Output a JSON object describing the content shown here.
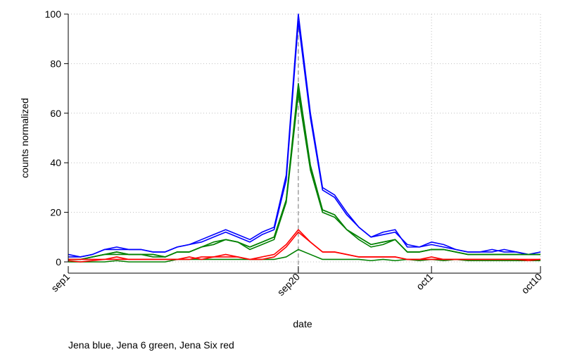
{
  "chart_data": {
    "type": "line",
    "title": "",
    "xlabel": "date",
    "ylabel": "counts normalized",
    "note": "Jena blue, Jena 6 green, Jena Six red",
    "grid": true,
    "xlim": [
      0,
      39
    ],
    "ylim": [
      0,
      100
    ],
    "x_ticks": [
      {
        "value": 0,
        "label": "sep1"
      },
      {
        "value": 19,
        "label": "sep20"
      },
      {
        "value": 30,
        "label": "oct1"
      },
      {
        "value": 39,
        "label": "oct10"
      }
    ],
    "y_ticks": [
      0,
      20,
      40,
      60,
      80,
      100
    ],
    "vline_x": 19,
    "colors": {
      "blue": "#0000ff",
      "green": "#008000",
      "red": "#ff0000",
      "grid": "#bfbfbf",
      "vline": "#888888"
    },
    "series": [
      {
        "color": "#0000ff",
        "values": [
          3,
          2,
          3,
          5,
          6,
          5,
          5,
          4,
          4,
          6,
          7,
          9,
          11,
          13,
          11,
          9,
          12,
          14,
          35,
          100,
          60,
          30,
          27,
          20,
          14,
          10,
          11,
          12,
          7,
          6,
          8,
          7,
          5,
          4,
          4,
          4,
          5,
          4,
          3,
          4
        ]
      },
      {
        "color": "#0000ff",
        "values": [
          2,
          2,
          3,
          5,
          5,
          5,
          5,
          4,
          4,
          6,
          7,
          8,
          10,
          12,
          10,
          8,
          11,
          13,
          33,
          97,
          58,
          29,
          26,
          19,
          14,
          10,
          12,
          13,
          6,
          6,
          7,
          6,
          5,
          4,
          4,
          5,
          4,
          4,
          3,
          3
        ]
      },
      {
        "color": "#008000",
        "values": [
          1,
          1,
          2,
          3,
          4,
          3,
          3,
          3,
          2,
          4,
          4,
          6,
          7,
          9,
          8,
          6,
          8,
          10,
          25,
          72,
          39,
          21,
          19,
          13,
          10,
          7,
          8,
          9,
          4,
          4,
          5,
          5,
          4,
          3,
          3,
          3,
          3,
          3,
          3,
          3
        ]
      },
      {
        "color": "#008000",
        "values": [
          1,
          1,
          2,
          3,
          3,
          3,
          3,
          2,
          2,
          4,
          4,
          6,
          7,
          9,
          8,
          5,
          7,
          9,
          24,
          68,
          37,
          20,
          18,
          13,
          9,
          6,
          7,
          9,
          4,
          4,
          5,
          5,
          4,
          3,
          3,
          3,
          3,
          3,
          3,
          3
        ]
      },
      {
        "color": "#008000",
        "values": [
          1,
          1,
          2,
          3,
          4,
          3,
          3,
          3,
          2,
          4,
          4,
          6,
          8,
          9,
          8,
          6,
          8,
          10,
          25,
          70,
          38,
          21,
          19,
          13,
          10,
          7,
          8,
          9,
          4,
          4,
          5,
          5,
          4,
          3,
          3,
          3,
          3,
          3,
          3,
          3
        ]
      },
      {
        "color": "#008000",
        "values": [
          0,
          0,
          0,
          0,
          0.5,
          0,
          0,
          0,
          0,
          1,
          1,
          1,
          1,
          1,
          1,
          1,
          1,
          1,
          2,
          5,
          3,
          1,
          1,
          1,
          1,
          0.5,
          1,
          0.5,
          1,
          0.5,
          1,
          0.5,
          1,
          0.5,
          0.5,
          0.5,
          0.5,
          0.5,
          0.5,
          0.5
        ]
      },
      {
        "color": "#ff0000",
        "values": [
          1,
          1,
          1,
          1,
          2,
          1,
          1,
          1,
          1,
          1,
          1,
          2,
          2,
          3,
          2,
          1,
          2,
          3,
          7,
          13,
          8,
          4,
          4,
          3,
          2,
          2,
          2,
          2,
          1,
          1,
          2,
          1,
          1,
          1,
          1,
          1,
          1,
          1,
          1,
          1
        ]
      },
      {
        "color": "#ff0000",
        "values": [
          0.5,
          0,
          0.5,
          1,
          1,
          1,
          1,
          1,
          1,
          1,
          2,
          1,
          2,
          2,
          2,
          1,
          1,
          2,
          6,
          12,
          8,
          4,
          4,
          3,
          2,
          2,
          2,
          2,
          1,
          1,
          1,
          1,
          1,
          1,
          1,
          1,
          1,
          1,
          0.5,
          1
        ]
      }
    ]
  }
}
